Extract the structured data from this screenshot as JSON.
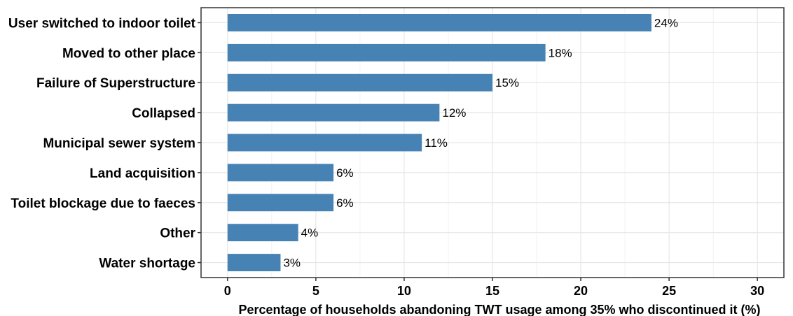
{
  "chart_data": {
    "type": "bar",
    "orientation": "horizontal",
    "categories": [
      "User switched to indoor toilet",
      "Moved to other place",
      "Failure of Superstructure",
      "Collapsed",
      "Municipal sewer system",
      "Land acquisition",
      "Toilet blockage due to faeces",
      "Other",
      "Water shortage"
    ],
    "values": [
      24,
      18,
      15,
      12,
      11,
      6,
      6,
      4,
      3
    ],
    "data_labels": [
      "24%",
      "18%",
      "15%",
      "12%",
      "11%",
      "6%",
      "6%",
      "4%",
      "3%"
    ],
    "xlabel": "Percentage of households abandoning TWT usage among 35% who discontinued it (%)",
    "ylabel": "",
    "xlim": [
      -1.5,
      31.5
    ],
    "xticks": [
      0,
      5,
      10,
      15,
      20,
      25,
      30
    ],
    "grid": true,
    "bar_color": "#4682B4",
    "grid_color": "#e6e6e6",
    "legend": "none"
  }
}
